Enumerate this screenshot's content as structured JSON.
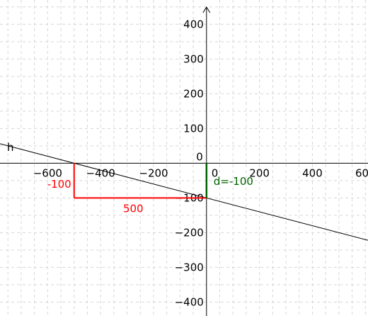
{
  "chart_data": {
    "type": "line",
    "title": "",
    "xlabel": "",
    "ylabel": "",
    "xlim": [
      -780,
      610
    ],
    "ylim": [
      -440,
      470
    ],
    "grid": true,
    "grid_step": 50,
    "x_ticks": [
      -600,
      -400,
      -200,
      0,
      200,
      400,
      600
    ],
    "x_tick_labels": [
      "−600",
      "−400",
      "−200",
      "0",
      "200",
      "400",
      "600"
    ],
    "y_ticks": [
      -400,
      -300,
      -200,
      -100,
      0,
      100,
      200,
      300,
      400
    ],
    "y_tick_labels": [
      "−400",
      "−300",
      "−200",
      "−100",
      "0",
      "100",
      "200",
      "300",
      "400"
    ],
    "line": {
      "name": "h",
      "slope": -0.2,
      "intercept": -100,
      "color": "#000000"
    },
    "slope_triangle": {
      "color": "#ff0000",
      "rise_x": -500,
      "rise_from": 0,
      "rise_to": -100,
      "rise_label": "-100",
      "run_y": -100,
      "run_from": -500,
      "run_to": 0,
      "run_label": "500"
    },
    "intercept_marker": {
      "x": 0,
      "from": 0,
      "to": -100,
      "label": "d=-100",
      "color": "#006400"
    }
  }
}
